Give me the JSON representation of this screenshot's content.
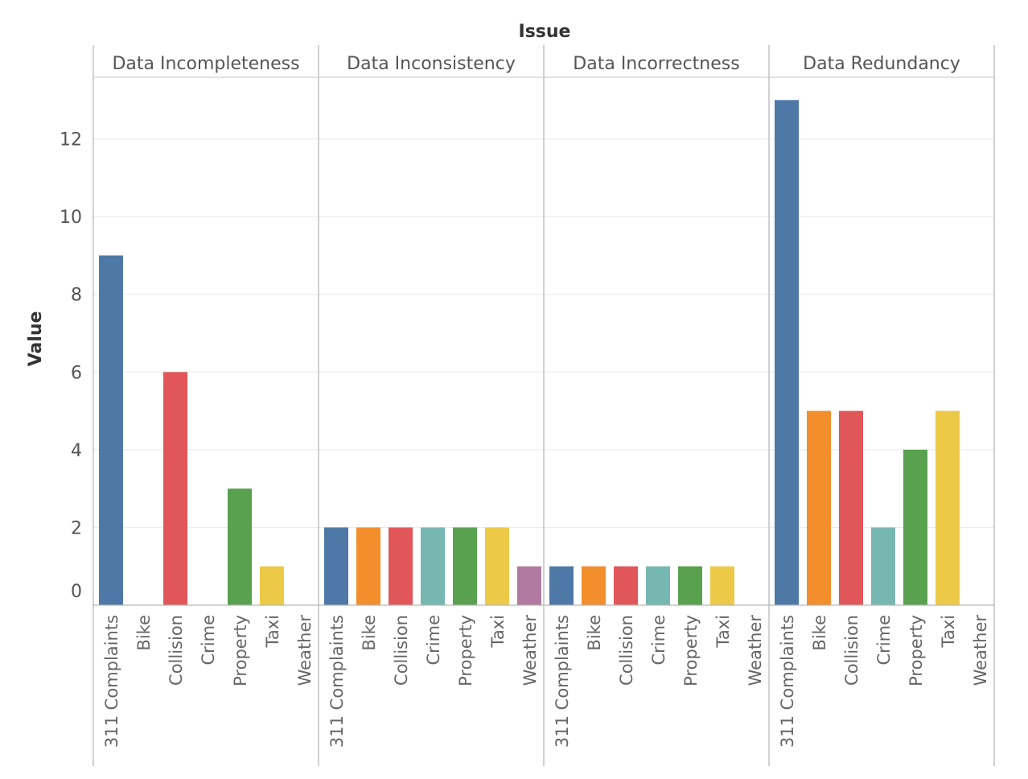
{
  "chart_data": {
    "type": "bar",
    "title": "Issue",
    "ylabel": "Value",
    "xlabel": "",
    "ylim": [
      0,
      13.4
    ],
    "yticks": [
      0,
      2,
      4,
      6,
      8,
      10,
      12
    ],
    "categories": [
      "311 Complaints",
      "Bike",
      "Collision",
      "Crime",
      "Property",
      "Taxi",
      "Weather"
    ],
    "category_colors": {
      "311 Complaints": "#4e79a7",
      "Bike": "#f28e2b",
      "Collision": "#e15759",
      "Crime": "#76b7b2",
      "Property": "#59a14f",
      "Taxi": "#edc948",
      "Weather": "#b07aa1"
    },
    "panels": [
      {
        "name": "Data Incompleteness",
        "values": [
          9,
          0,
          6,
          0,
          3,
          1,
          0
        ]
      },
      {
        "name": "Data Inconsistency",
        "values": [
          2,
          2,
          2,
          2,
          2,
          2,
          1
        ]
      },
      {
        "name": "Data Incorrectness",
        "values": [
          1,
          1,
          1,
          1,
          1,
          1,
          0
        ]
      },
      {
        "name": "Data Redundancy",
        "values": [
          13,
          5,
          5,
          2,
          4,
          5,
          0
        ]
      }
    ],
    "grid": true,
    "legend": "none"
  }
}
